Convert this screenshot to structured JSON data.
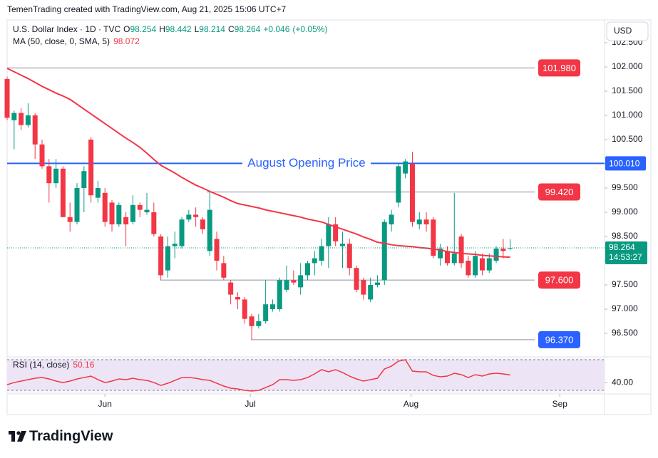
{
  "header": "TemenTrading created with TradingView.com, Aug 21, 2025 15:06 UTC+7",
  "currency": "USD",
  "brand": "TradingView",
  "chart_data": {
    "type": "candlestick",
    "symbol": "U.S. Dollar Index · 1D · TVC",
    "ohlc_letters": [
      "O",
      "H",
      "L",
      "C"
    ],
    "change": "+0.046",
    "change_pct": "(+0.05%)",
    "open": [
      101.75,
      100.9,
      101.05,
      100.8,
      101.0,
      100.4,
      99.95,
      99.6,
      99.9,
      98.9,
      98.8,
      99.5,
      100.5,
      99.3,
      99.4,
      99.2,
      98.75,
      98.9,
      98.8,
      99.15,
      99.0,
      99.0,
      98.5,
      97.8,
      98.3,
      98.3,
      98.85,
      98.95,
      98.85,
      98.2,
      98.45,
      97.95,
      97.55,
      97.25,
      97.2,
      96.85,
      96.65,
      96.75,
      97.0,
      97.0,
      97.4,
      97.6,
      97.45,
      97.7,
      97.95,
      98.0,
      98.3,
      98.75,
      98.3,
      98.35,
      97.85,
      97.6,
      97.2,
      97.5,
      97.6,
      98.75,
      99.2,
      99.8,
      100.0,
      98.75,
      98.85,
      98.85,
      98.05,
      98.2,
      97.95,
      98.5,
      98.0,
      97.7,
      98.05,
      97.8,
      98.0,
      98.25,
      98.254
    ],
    "high": [
      101.8,
      101.1,
      101.15,
      101.25,
      101.05,
      100.5,
      100.1,
      100.1,
      99.95,
      99.2,
      99.6,
      99.95,
      100.55,
      99.65,
      99.5,
      99.25,
      99.2,
      99.0,
      99.35,
      99.2,
      99.4,
      99.2,
      98.55,
      98.5,
      98.6,
      98.9,
      99.05,
      99.1,
      98.9,
      99.45,
      98.6,
      98.1,
      97.6,
      97.35,
      97.25,
      96.9,
      96.9,
      97.6,
      97.2,
      97.65,
      97.9,
      97.8,
      97.95,
      98.0,
      98.2,
      98.45,
      98.9,
      98.9,
      98.6,
      98.45,
      97.9,
      97.65,
      97.65,
      97.7,
      98.85,
      99.05,
      100.0,
      100.1,
      100.25,
      99.0,
      99.0,
      98.9,
      98.35,
      98.3,
      99.4,
      98.55,
      98.1,
      98.2,
      98.15,
      98.15,
      98.3,
      98.45,
      98.442
    ],
    "low": [
      100.9,
      100.3,
      100.7,
      100.75,
      100.1,
      99.9,
      99.2,
      99.5,
      98.9,
      98.6,
      98.75,
      99.0,
      99.2,
      99.2,
      98.7,
      98.6,
      98.7,
      98.3,
      98.75,
      98.9,
      98.95,
      98.5,
      97.6,
      97.65,
      98.05,
      98.25,
      98.8,
      98.7,
      98.55,
      98.1,
      97.8,
      97.6,
      97.1,
      97.0,
      96.7,
      96.37,
      96.6,
      96.7,
      96.95,
      96.95,
      97.35,
      97.5,
      97.3,
      97.6,
      97.7,
      97.9,
      97.85,
      98.3,
      97.85,
      97.7,
      97.35,
      97.2,
      97.15,
      97.45,
      97.5,
      98.6,
      99.1,
      99.7,
      98.7,
      98.65,
      98.6,
      98.05,
      97.9,
      97.9,
      97.9,
      97.85,
      97.65,
      97.65,
      97.7,
      97.75,
      97.95,
      98.05,
      98.214
    ],
    "close": [
      100.95,
      101.05,
      100.8,
      101.0,
      100.4,
      99.95,
      99.6,
      99.9,
      98.9,
      98.8,
      99.5,
      99.85,
      99.35,
      99.5,
      98.8,
      98.75,
      99.15,
      98.75,
      99.15,
      99.05,
      99.05,
      98.55,
      97.7,
      98.3,
      98.35,
      98.85,
      98.95,
      98.9,
      98.65,
      99.05,
      98.0,
      97.65,
      97.3,
      97.2,
      96.8,
      96.65,
      96.75,
      97.1,
      97.1,
      97.6,
      97.6,
      97.55,
      97.7,
      97.95,
      98.05,
      98.3,
      98.75,
      98.4,
      98.35,
      97.85,
      97.4,
      97.3,
      97.5,
      97.55,
      98.8,
      98.95,
      99.95,
      100.05,
      98.8,
      98.85,
      98.75,
      98.1,
      98.25,
      97.95,
      98.15,
      97.95,
      97.7,
      98.1,
      97.8,
      98.05,
      98.25,
      98.2,
      98.264
    ],
    "up_color": "#089981",
    "down_color": "#f23645",
    "xlim": [
      0,
      85.5
    ],
    "xticks": [
      {
        "value": 14,
        "label": "Jun"
      },
      {
        "value": 34.8,
        "label": "Jul"
      },
      {
        "value": 57.8,
        "label": "Aug"
      },
      {
        "value": 79.1,
        "label": "Sep"
      }
    ],
    "ylim": [
      96.03,
      102.97
    ],
    "yticks": [
      {
        "value": 96.5,
        "label": "96.500"
      },
      {
        "value": 97,
        "label": "97.000"
      },
      {
        "value": 97.5,
        "label": "97.500"
      },
      {
        "value": 98,
        "label": "98.000"
      },
      {
        "value": 98.5,
        "label": "98.500"
      },
      {
        "value": 99,
        "label": "99.000"
      },
      {
        "value": 99.5,
        "label": "99.500"
      },
      {
        "value": 100,
        "label": "100.000"
      },
      {
        "value": 100.5,
        "label": "100.500"
      },
      {
        "value": 101,
        "label": "101.000"
      },
      {
        "value": 101.5,
        "label": "101.500"
      },
      {
        "value": 102,
        "label": "102.000"
      },
      {
        "value": 102.5,
        "label": "102.500"
      }
    ],
    "countdown": "14:53:27",
    "ma": {
      "name": "MA (50, close, 0, SMA, 5)",
      "color": "#f23645",
      "values": [
        101.97,
        101.9,
        101.83,
        101.76,
        101.68,
        101.6,
        101.53,
        101.46,
        101.4,
        101.33,
        101.23,
        101.13,
        101.03,
        100.93,
        100.83,
        100.73,
        100.63,
        100.53,
        100.44,
        100.34,
        100.22,
        100.09,
        99.97,
        99.89,
        99.81,
        99.72,
        99.64,
        99.56,
        99.5,
        99.43,
        99.37,
        99.31,
        99.24,
        99.18,
        99.15,
        99.12,
        99.09,
        99.05,
        99.02,
        98.99,
        98.96,
        98.93,
        98.9,
        98.86,
        98.83,
        98.8,
        98.75,
        98.7,
        98.65,
        98.6,
        98.55,
        98.49,
        98.44,
        98.38,
        98.36,
        98.33,
        98.31,
        98.3,
        98.29,
        98.27,
        98.26,
        98.24,
        98.22,
        98.19,
        98.17,
        98.15,
        98.14,
        98.13,
        98.11,
        98.1,
        98.09,
        98.08,
        98.072
      ]
    },
    "opening_line": {
      "value": 100.01,
      "label": "100.010",
      "color": "#2962ff",
      "text": "August Opening Price"
    },
    "hlines": [
      {
        "value": 101.98,
        "label": "101.980",
        "color": "#f23645"
      },
      {
        "value": 99.42,
        "label": "99.420",
        "color": "#f23645"
      },
      {
        "value": 97.6,
        "label": "97.600",
        "color": "#f23645"
      },
      {
        "value": 96.37,
        "label": "96.370",
        "color": "#2962ff"
      }
    ],
    "rsi": {
      "name": "RSI (14, close)",
      "color": "#f23645",
      "values": [
        37.4,
        40.2,
        42.1,
        44,
        45.8,
        46.7,
        44.9,
        42.1,
        40.2,
        42.1,
        44.9,
        46.7,
        48.6,
        44,
        40.2,
        42.1,
        44.9,
        44,
        45.8,
        44,
        43,
        40.2,
        36.5,
        39.3,
        43,
        46.7,
        46.7,
        45.8,
        44,
        43,
        39.3,
        35.6,
        32.8,
        31.9,
        30,
        29.1,
        30,
        33.7,
        37.4,
        44,
        44,
        43,
        44,
        46.7,
        51.4,
        57,
        54.2,
        57,
        53.3,
        48.6,
        44.9,
        42.1,
        44,
        45.8,
        57.9,
        61.6,
        68.1,
        70,
        55.1,
        54.2,
        54.2,
        49.5,
        47.7,
        48.6,
        52.3,
        50.5,
        46.7,
        50.5,
        48.6,
        51.4,
        52.3,
        51.4,
        50.16
      ],
      "ylim": [
        26.3,
        72.8
      ],
      "yticks": [
        {
          "value": 40,
          "label": "40.00"
        }
      ],
      "bands": [
        70,
        30
      ]
    }
  }
}
